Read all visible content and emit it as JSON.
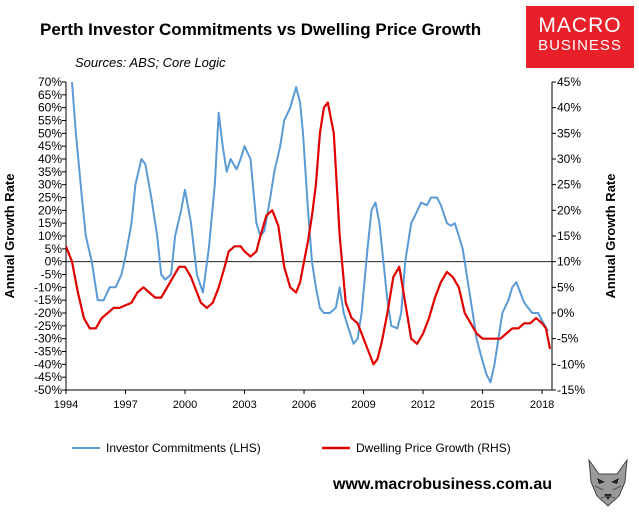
{
  "title": "Perth Investor Commitments vs Dwelling Price Growth",
  "subtitle": "Sources: ABS; Core Logic",
  "logo": {
    "line1": "MACRO",
    "line2": "BUSINESS"
  },
  "website": "www.macrobusiness.com.au",
  "colors": {
    "series_lhs": "#5b9bd5",
    "series_rhs": "#e00000",
    "logo_bg": "#e8202a"
  },
  "chart_data": {
    "type": "line",
    "title": "Perth Investor Commitments vs Dwelling Price Growth",
    "subtitle": "Sources: ABS; Core Logic",
    "ylabel": "Annual Growth Rate",
    "y2label": "Annual Growth Rate",
    "xlim": [
      1994,
      2018.5
    ],
    "ylim": [
      -50,
      70
    ],
    "y2lim": [
      -15,
      45
    ],
    "xticks": [
      "1994",
      "1997",
      "2000",
      "2003",
      "2006",
      "2009",
      "2012",
      "2015",
      "2018"
    ],
    "yticks": [
      "70%",
      "65%",
      "60%",
      "55%",
      "50%",
      "45%",
      "40%",
      "35%",
      "30%",
      "25%",
      "20%",
      "15%",
      "10%",
      "5%",
      "0%",
      "-5%",
      "-10%",
      "-15%",
      "-20%",
      "-25%",
      "-30%",
      "-35%",
      "-40%",
      "-45%",
      "-50%"
    ],
    "y2ticks": [
      "45%",
      "40%",
      "35%",
      "30%",
      "25%",
      "20%",
      "15%",
      "10%",
      "5%",
      "0%",
      "-5%",
      "-10%",
      "-15%"
    ],
    "legend_position": "bottom",
    "series": [
      {
        "name": "Investor Commitments (LHS)",
        "axis": "left",
        "x": [
          1994.3,
          1994.5,
          1994.8,
          1995,
          1995.3,
          1995.6,
          1995.9,
          1996.2,
          1996.5,
          1996.8,
          1997,
          1997.3,
          1997.5,
          1997.8,
          1998,
          1998.3,
          1998.6,
          1998.8,
          1999,
          1999.3,
          1999.5,
          1999.8,
          2000,
          2000.3,
          2000.6,
          2000.9,
          2001.2,
          2001.5,
          2001.7,
          2001.9,
          2002.1,
          2002.3,
          2002.6,
          2002.8,
          2003,
          2003.3,
          2003.6,
          2003.8,
          2004,
          2004.3,
          2004.5,
          2004.8,
          2005,
          2005.3,
          2005.6,
          2005.8,
          2005.95,
          2006.2,
          2006.4,
          2006.6,
          2006.8,
          2007,
          2007.3,
          2007.6,
          2007.8,
          2008,
          2008.2,
          2008.5,
          2008.7,
          2008.9,
          2009.2,
          2009.4,
          2009.6,
          2009.8,
          2010,
          2010.2,
          2010.4,
          2010.7,
          2010.9,
          2011.1,
          2011.4,
          2011.6,
          2011.9,
          2012.2,
          2012.4,
          2012.7,
          2012.9,
          2013.2,
          2013.4,
          2013.6,
          2013.8,
          2014,
          2014.2,
          2014.5,
          2014.7,
          2014.9,
          2015.2,
          2015.4,
          2015.6,
          2015.8,
          2016,
          2016.3,
          2016.5,
          2016.7,
          2016.9,
          2017.1,
          2017.3,
          2017.5,
          2017.8,
          2018,
          2018.3
        ],
        "y": [
          70,
          50,
          25,
          10,
          0,
          -15,
          -15,
          -10,
          -10,
          -5,
          2,
          15,
          30,
          40,
          38,
          25,
          10,
          -5,
          -7,
          -5,
          10,
          20,
          28,
          15,
          -5,
          -12,
          5,
          30,
          58,
          45,
          35,
          40,
          36,
          40,
          45,
          40,
          15,
          10,
          12,
          25,
          35,
          45,
          55,
          60,
          68,
          62,
          50,
          20,
          0,
          -10,
          -18,
          -20,
          -20,
          -18,
          -10,
          -20,
          -25,
          -32,
          -30,
          -20,
          5,
          20,
          23,
          15,
          0,
          -15,
          -25,
          -26,
          -20,
          0,
          15,
          18,
          23,
          22,
          25,
          25,
          22,
          15,
          14,
          15,
          10,
          5,
          -5,
          -20,
          -30,
          -36,
          -44,
          -47,
          -40,
          -30,
          -20,
          -15,
          -10,
          -8,
          -12,
          -16,
          -18,
          -20,
          -20,
          -23,
          -27
        ]
      },
      {
        "name": "Dwelling Price Growth (RHS)",
        "axis": "right",
        "x": [
          1994,
          1994.3,
          1994.6,
          1994.9,
          1995.2,
          1995.5,
          1995.8,
          1996.1,
          1996.4,
          1996.7,
          1997,
          1997.3,
          1997.6,
          1997.9,
          1998.2,
          1998.5,
          1998.8,
          1999.1,
          1999.4,
          1999.7,
          2000,
          2000.3,
          2000.6,
          2000.8,
          2001.1,
          2001.4,
          2001.7,
          2002,
          2002.2,
          2002.5,
          2002.8,
          2003,
          2003.3,
          2003.6,
          2003.8,
          2004.1,
          2004.4,
          2004.7,
          2005,
          2005.3,
          2005.6,
          2005.8,
          2006,
          2006.2,
          2006.4,
          2006.6,
          2006.8,
          2007,
          2007.2,
          2007.5,
          2007.8,
          2008.1,
          2008.4,
          2008.7,
          2008.9,
          2009.2,
          2009.5,
          2009.7,
          2009.9,
          2010.2,
          2010.5,
          2010.8,
          2011.1,
          2011.4,
          2011.7,
          2012,
          2012.3,
          2012.6,
          2012.9,
          2013.2,
          2013.5,
          2013.8,
          2014.1,
          2014.4,
          2014.7,
          2015,
          2015.3,
          2015.6,
          2015.9,
          2016.2,
          2016.5,
          2016.8,
          2017.1,
          2017.4,
          2017.7,
          2018,
          2018.2,
          2018.4
        ],
        "y": [
          13,
          10,
          4,
          -1,
          -3,
          -3,
          -1,
          0,
          1,
          1,
          1.5,
          2,
          4,
          5,
          4,
          3,
          3,
          5,
          7,
          9,
          9,
          7,
          4,
          2,
          1,
          2,
          5,
          9,
          12,
          13,
          13,
          12,
          11,
          12,
          15,
          19,
          20,
          17,
          9,
          5,
          4,
          6,
          10,
          14,
          19,
          25,
          35,
          40,
          41,
          35,
          15,
          2,
          -1,
          -2,
          -4,
          -7,
          -10,
          -9,
          -6,
          0,
          7,
          9,
          2,
          -5,
          -6,
          -4,
          -1,
          3,
          6,
          8,
          7,
          5,
          0,
          -2,
          -4,
          -5,
          -5,
          -5,
          -5,
          -4,
          -3,
          -3,
          -2,
          -2,
          -1,
          -2,
          -3,
          -7
        ]
      }
    ]
  }
}
